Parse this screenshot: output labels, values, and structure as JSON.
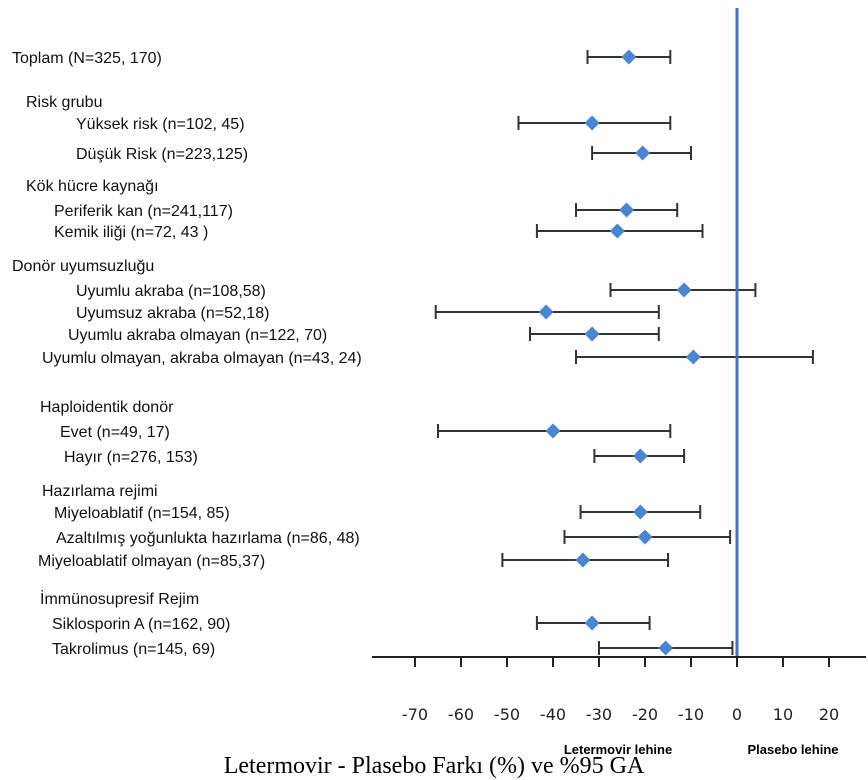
{
  "chart_data": {
    "type": "forest",
    "xlabel": "Letermovir - Plasebo Farkı (%) ve %95 GA",
    "xlim": [
      -70,
      20
    ],
    "xticks": [
      -70,
      -60,
      -50,
      -40,
      -30,
      -20,
      -10,
      0,
      10,
      20
    ],
    "reference_line": 0,
    "favors_left": "Letermovir lehine",
    "favors_right": "Plasebo lehine",
    "rows": [
      {
        "label": "Toplam (N=325, 170)",
        "est": -23.5,
        "lo": -32.5,
        "hi": -14.5
      },
      {
        "label": "Risk grubu",
        "header": true
      },
      {
        "label": "Yüksek risk (n=102, 45)",
        "est": -31.5,
        "lo": -47.5,
        "hi": -14.5
      },
      {
        "label": "Düşük Risk  (n=223,125)",
        "est": -20.5,
        "lo": -31.5,
        "hi": -10.0
      },
      {
        "label": "Kök hücre kaynağı",
        "header": true
      },
      {
        "label": "Periferik kan (n=241,117)",
        "est": -24.0,
        "lo": -35.0,
        "hi": -13.0
      },
      {
        "label": "Kemik iliği (n=72, 43 )",
        "est": -26.0,
        "lo": -43.5,
        "hi": -7.5
      },
      {
        "label": "Donör uyumsuzluğu",
        "header": true
      },
      {
        "label": "Uyumlu akraba (n=108,58)",
        "est": -11.5,
        "lo": -27.5,
        "hi": 4.0
      },
      {
        "label": "Uyumsuz  akraba  (n=52,18)",
        "est": -41.5,
        "lo": -65.5,
        "hi": -17.0
      },
      {
        "label": "Uyumlu akraba olmayan (n=122, 70)",
        "est": -31.5,
        "lo": -45.0,
        "hi": -17.0
      },
      {
        "label": "Uyumlu olmayan, akraba olmayan (n=43, 24)",
        "est": -9.5,
        "lo": -35.0,
        "hi": 16.5
      },
      {
        "label": "Haploidentik donör",
        "header": true
      },
      {
        "label": "Evet  (n=49, 17)",
        "est": -40.0,
        "lo": -65.0,
        "hi": -14.5
      },
      {
        "label": "Hayır (n=276, 153)",
        "est": -21.0,
        "lo": -31.0,
        "hi": -11.5
      },
      {
        "label": "Hazırlama rejimi",
        "header": true
      },
      {
        "label": "Miyeloablatif (n=154, 85)",
        "est": -21.0,
        "lo": -34.0,
        "hi": -8.0
      },
      {
        "label": "Azaltılmış yoğunlukta  hazırlama (n=86, 48)",
        "est": -20.0,
        "lo": -37.5,
        "hi": -1.5
      },
      {
        "label": "Miyeloablatif olmayan (n=85,37)",
        "est": -33.5,
        "lo": -51.0,
        "hi": -15.0
      },
      {
        "label": "İmmünosupresif Rejim",
        "header": true
      },
      {
        "label": "Siklosporin A (n=162, 90)",
        "est": -31.5,
        "lo": -43.5,
        "hi": -19.0
      },
      {
        "label": "Takrolimus (n=145, 69)",
        "est": -15.5,
        "lo": -30.0,
        "hi": -1.0
      }
    ]
  },
  "colors": {
    "marker": "#4a86cf",
    "reference_line": "#4472c4",
    "ci_line": "#333333",
    "axis": "#222222"
  }
}
